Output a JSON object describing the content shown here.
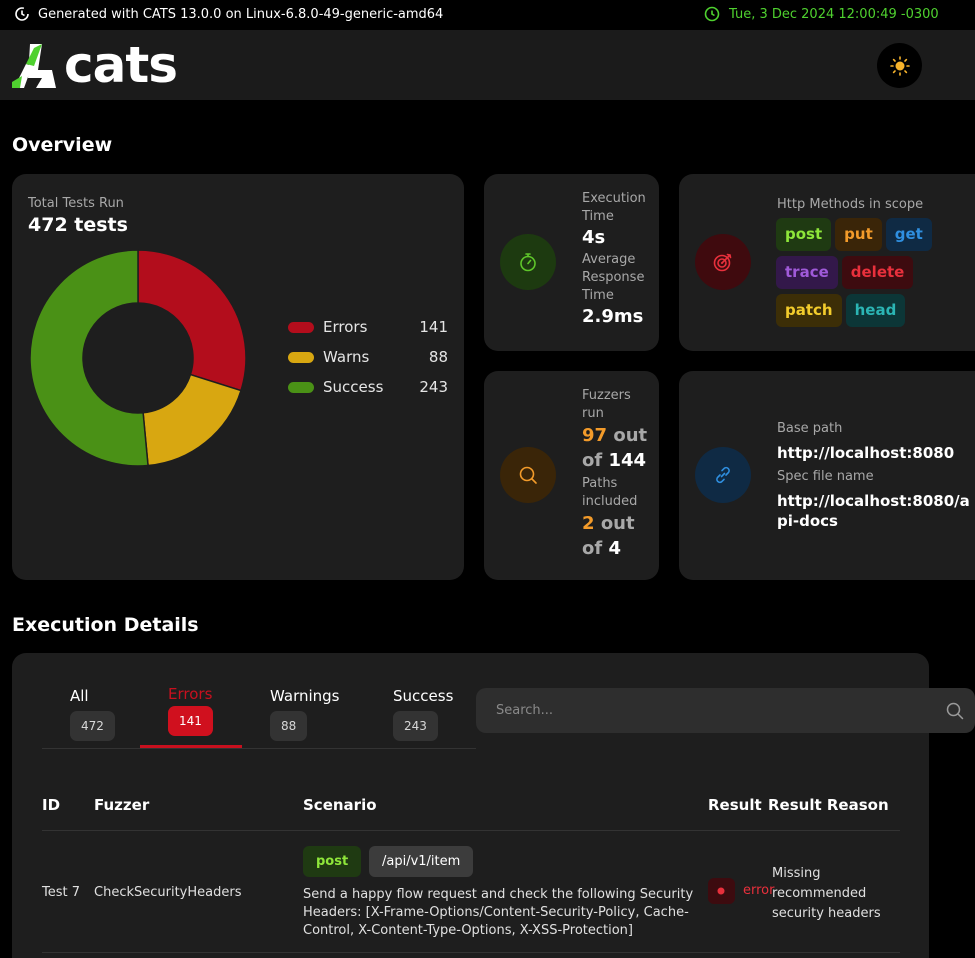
{
  "topbar": {
    "generated": "Generated with CATS 13.0.0 on Linux-6.8.0-49-generic-amd64",
    "datetime": "Tue, 3 Dec 2024 12:00:49 -0300"
  },
  "header": {
    "logo_text": "cats"
  },
  "overview": {
    "title": "Overview",
    "total_label": "Total Tests Run",
    "total_value": "472 tests",
    "legend": [
      {
        "name": "Errors",
        "value": 141,
        "color": "#b30d1c"
      },
      {
        "name": "Warns",
        "value": 88,
        "color": "#d8a711"
      },
      {
        "name": "Success",
        "value": 243,
        "color": "#4a9116"
      }
    ],
    "execution": {
      "time_label": "Execution Time",
      "time_value": "4s",
      "resp_label": "Average Response Time",
      "resp_value": "2.9ms"
    },
    "methods": {
      "label": "Http Methods in scope",
      "items": [
        {
          "name": "post",
          "bg": "#1f3a12",
          "fg": "#8ee63a"
        },
        {
          "name": "put",
          "bg": "#3a2508",
          "fg": "#f39b2a"
        },
        {
          "name": "get",
          "bg": "#0f2a44",
          "fg": "#2f8fe0"
        },
        {
          "name": "trace",
          "bg": "#33184a",
          "fg": "#a05ad9"
        },
        {
          "name": "delete",
          "bg": "#3d0b0f",
          "fg": "#e8303c"
        },
        {
          "name": "patch",
          "bg": "#3c2e07",
          "fg": "#f3cc2c"
        },
        {
          "name": "head",
          "bg": "#0c3637",
          "fg": "#2bb5b4"
        }
      ]
    },
    "fuzzers": {
      "label": "Fuzzers run",
      "run": "97",
      "out_of": "out of",
      "total": "144",
      "paths_label": "Paths included",
      "paths_run": "2",
      "paths_total": "4"
    },
    "paths": {
      "base_label": "Base path",
      "base_value": "http://localhost:8080",
      "spec_label": "Spec file name",
      "spec_value": "http://localhost:8080/api-docs"
    }
  },
  "details": {
    "title": "Execution Details",
    "tabs": [
      {
        "name": "All",
        "count": "472"
      },
      {
        "name": "Errors",
        "count": "141"
      },
      {
        "name": "Warnings",
        "count": "88"
      },
      {
        "name": "Success",
        "count": "243"
      }
    ],
    "search_placeholder": "Search...",
    "columns": {
      "id": "ID",
      "fuzzer": "Fuzzer",
      "scenario": "Scenario",
      "result": "Result",
      "reason": "Result Reason"
    },
    "rows": [
      {
        "id": "Test 7",
        "fuzzer": "CheckSecurityHeaders",
        "method": "post",
        "path": "/api/v1/item",
        "scenario": "Send a happy flow request and check the following Security Headers: [X-Frame-Options/Content-Security-Policy, Cache-Control, X-Content-Type-Options, X-XSS-Protection]",
        "result": "error",
        "reason": "Missing recommended security headers"
      }
    ]
  }
}
